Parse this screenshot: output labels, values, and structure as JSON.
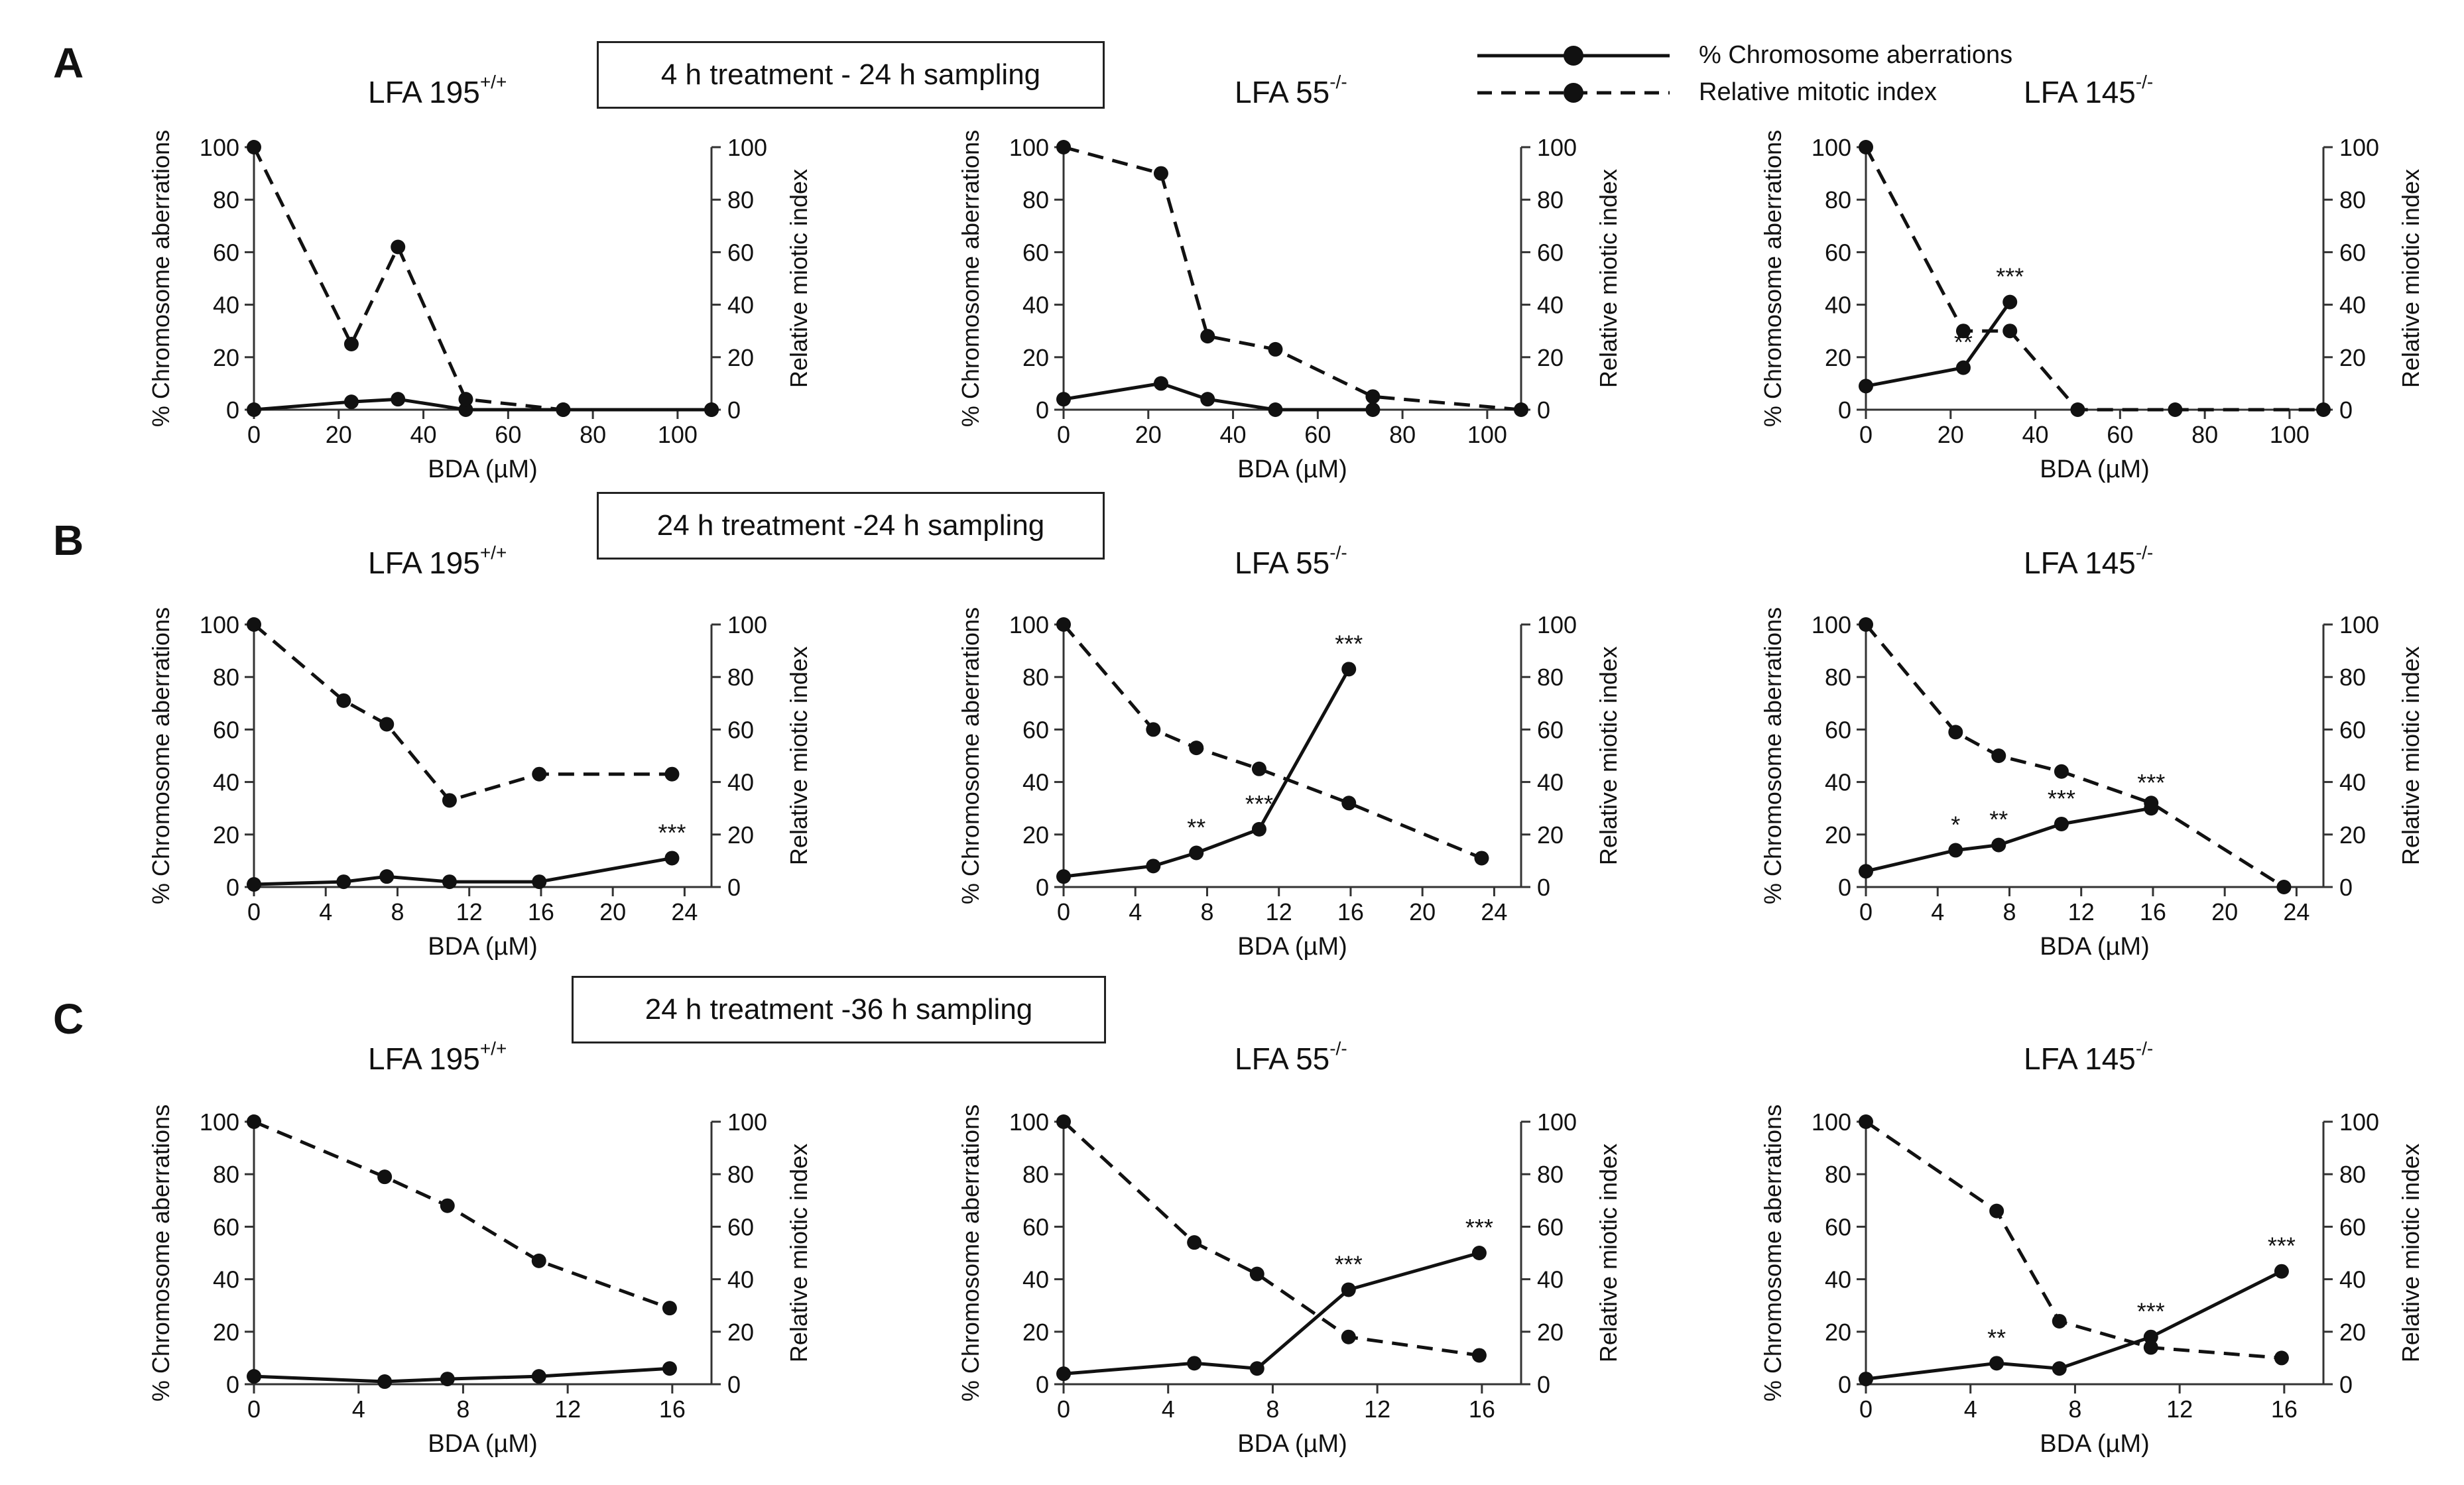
{
  "panel_letters": [
    "A",
    "B",
    "C"
  ],
  "conditions": [
    "4 h treatment - 24 h sampling",
    "24 h treatment -24 h sampling",
    "24 h treatment -36 h sampling"
  ],
  "cell_lines": [
    {
      "name": "LFA 195",
      "sup": "+/+"
    },
    {
      "name": "LFA 55",
      "sup": "-/-"
    },
    {
      "name": "LFA 145",
      "sup": "-/-"
    }
  ],
  "legend": {
    "solid_label": "% Chromosome aberrations",
    "dashed_label": "Relative mitotic index"
  },
  "colors": {
    "line": "#111111",
    "axis": "#333333"
  },
  "chart_data": [
    {
      "type": "line",
      "row": "A",
      "cell_line": "LFA 195+/+",
      "xlabel": "BDA (µM)",
      "ylabel": "% Chromosome aberrations",
      "y2label": "Relative miotic index",
      "xlim": [
        0,
        108
      ],
      "xticks": [
        0,
        20,
        40,
        60,
        80,
        100
      ],
      "ylim": [
        0,
        100
      ],
      "yticks": [
        0,
        20,
        40,
        60,
        80,
        100
      ],
      "series": [
        {
          "name": "% Chromosome aberrations",
          "style": "solid",
          "x": [
            0,
            23,
            34,
            50,
            73,
            108
          ],
          "y": [
            0,
            3,
            4,
            0,
            0,
            0
          ]
        },
        {
          "name": "Relative mitotic index",
          "style": "dashed",
          "x": [
            0,
            23,
            34,
            50,
            73,
            108
          ],
          "y": [
            100,
            25,
            62,
            4,
            0,
            0
          ]
        }
      ],
      "annotations": []
    },
    {
      "type": "line",
      "row": "A",
      "cell_line": "LFA 55-/-",
      "xlabel": "BDA (µM)",
      "ylabel": "% Chromosome aberrations",
      "y2label": "Relative miotic index",
      "xlim": [
        0,
        108
      ],
      "xticks": [
        0,
        20,
        40,
        60,
        80,
        100
      ],
      "ylim": [
        0,
        100
      ],
      "yticks": [
        0,
        20,
        40,
        60,
        80,
        100
      ],
      "series": [
        {
          "name": "% Chromosome aberrations",
          "style": "solid",
          "x": [
            0,
            23,
            34,
            50,
            73
          ],
          "y": [
            4,
            10,
            4,
            0,
            0
          ]
        },
        {
          "name": "Relative mitotic index",
          "style": "dashed",
          "x": [
            0,
            23,
            34,
            50,
            73,
            108
          ],
          "y": [
            100,
            90,
            28,
            23,
            5,
            0
          ]
        }
      ],
      "annotations": []
    },
    {
      "type": "line",
      "row": "A",
      "cell_line": "LFA 145-/-",
      "xlabel": "BDA (µM)",
      "ylabel": "% Chromosome aberrations",
      "y2label": "Relative miotic index",
      "xlim": [
        0,
        108
      ],
      "xticks": [
        0,
        20,
        40,
        60,
        80,
        100
      ],
      "ylim": [
        0,
        100
      ],
      "yticks": [
        0,
        20,
        40,
        60,
        80,
        100
      ],
      "series": [
        {
          "name": "% Chromosome aberrations",
          "style": "solid",
          "x": [
            0,
            23,
            34
          ],
          "y": [
            9,
            16,
            41
          ]
        },
        {
          "name": "Relative mitotic index",
          "style": "dashed",
          "x": [
            0,
            23,
            34,
            50,
            73,
            108
          ],
          "y": [
            100,
            30,
            30,
            0,
            0,
            0
          ]
        }
      ],
      "annotations": [
        {
          "x": 23,
          "y": 16,
          "text": "**"
        },
        {
          "x": 34,
          "y": 41,
          "text": "***"
        }
      ]
    },
    {
      "type": "line",
      "row": "B",
      "cell_line": "LFA 195+/+",
      "xlabel": "BDA (µM)",
      "ylabel": "% Chromosome aberrations",
      "y2label": "Relative miotic index",
      "xlim": [
        0,
        25.5
      ],
      "xticks": [
        0,
        4,
        8,
        12,
        16,
        20,
        24
      ],
      "ylim": [
        0,
        100
      ],
      "yticks": [
        0,
        20,
        40,
        60,
        80,
        100
      ],
      "series": [
        {
          "name": "% Chromosome aberrations",
          "style": "solid",
          "x": [
            0,
            5,
            7.4,
            10.9,
            15.9,
            23.3
          ],
          "y": [
            1,
            2,
            4,
            2,
            2,
            11
          ]
        },
        {
          "name": "Relative mitotic index",
          "style": "dashed",
          "x": [
            0,
            5,
            7.4,
            10.9,
            15.9,
            23.3
          ],
          "y": [
            100,
            71,
            62,
            33,
            43,
            43
          ]
        }
      ],
      "annotations": [
        {
          "x": 23.3,
          "y": 11,
          "text": "***"
        }
      ]
    },
    {
      "type": "line",
      "row": "B",
      "cell_line": "LFA 55-/-",
      "xlabel": "BDA (µM)",
      "ylabel": "% Chromosome aberrations",
      "y2label": "Relative miotic index",
      "xlim": [
        0,
        25.5
      ],
      "xticks": [
        0,
        4,
        8,
        12,
        16,
        20,
        24
      ],
      "ylim": [
        0,
        100
      ],
      "yticks": [
        0,
        20,
        40,
        60,
        80,
        100
      ],
      "series": [
        {
          "name": "% Chromosome aberrations",
          "style": "solid",
          "x": [
            0,
            5,
            7.4,
            10.9,
            15.9
          ],
          "y": [
            4,
            8,
            13,
            22,
            83
          ]
        },
        {
          "name": "Relative mitotic index",
          "style": "dashed",
          "x": [
            0,
            5,
            7.4,
            10.9,
            15.9,
            23.3
          ],
          "y": [
            100,
            60,
            53,
            45,
            32,
            11
          ]
        }
      ],
      "annotations": [
        {
          "x": 7.4,
          "y": 13,
          "text": "**"
        },
        {
          "x": 10.9,
          "y": 22,
          "text": "***"
        },
        {
          "x": 15.9,
          "y": 83,
          "text": "***"
        }
      ]
    },
    {
      "type": "line",
      "row": "B",
      "cell_line": "LFA 145-/-",
      "xlabel": "BDA (µM)",
      "ylabel": "% Chromosome aberrations",
      "y2label": "Relative miotic index",
      "xlim": [
        0,
        25.5
      ],
      "xticks": [
        0,
        4,
        8,
        12,
        16,
        20,
        24
      ],
      "ylim": [
        0,
        100
      ],
      "yticks": [
        0,
        20,
        40,
        60,
        80,
        100
      ],
      "series": [
        {
          "name": "% Chromosome aberrations",
          "style": "solid",
          "x": [
            0,
            5,
            7.4,
            10.9,
            15.9
          ],
          "y": [
            6,
            14,
            16,
            24,
            30
          ]
        },
        {
          "name": "Relative mitotic index",
          "style": "dashed",
          "x": [
            0,
            5,
            7.4,
            10.9,
            15.9,
            23.3
          ],
          "y": [
            100,
            59,
            50,
            44,
            32,
            0
          ]
        }
      ],
      "annotations": [
        {
          "x": 5,
          "y": 14,
          "text": "*"
        },
        {
          "x": 7.4,
          "y": 16,
          "text": "**"
        },
        {
          "x": 10.9,
          "y": 24,
          "text": "***"
        },
        {
          "x": 15.9,
          "y": 30,
          "text": "***"
        }
      ]
    },
    {
      "type": "line",
      "row": "C",
      "cell_line": "LFA 195+/+",
      "xlabel": "BDA (µM)",
      "ylabel": "% Chromosome aberrations",
      "y2label": "Relative miotic index",
      "xlim": [
        0,
        17.5
      ],
      "xticks": [
        0,
        4,
        8,
        12,
        16
      ],
      "ylim": [
        0,
        100
      ],
      "yticks": [
        0,
        20,
        40,
        60,
        80,
        100
      ],
      "series": [
        {
          "name": "% Chromosome aberrations",
          "style": "solid",
          "x": [
            0,
            5,
            7.4,
            10.9,
            15.9
          ],
          "y": [
            3,
            1,
            2,
            3,
            6
          ]
        },
        {
          "name": "Relative mitotic index",
          "style": "dashed",
          "x": [
            0,
            5,
            7.4,
            10.9,
            15.9
          ],
          "y": [
            100,
            79,
            68,
            47,
            29
          ]
        }
      ],
      "annotations": []
    },
    {
      "type": "line",
      "row": "C",
      "cell_line": "LFA 55-/-",
      "xlabel": "BDA (µM)",
      "ylabel": "% Chromosome aberrations",
      "y2label": "Relative miotic index",
      "xlim": [
        0,
        17.5
      ],
      "xticks": [
        0,
        4,
        8,
        12,
        16
      ],
      "ylim": [
        0,
        100
      ],
      "yticks": [
        0,
        20,
        40,
        60,
        80,
        100
      ],
      "series": [
        {
          "name": "% Chromosome aberrations",
          "style": "solid",
          "x": [
            0,
            5,
            7.4,
            10.9,
            15.9
          ],
          "y": [
            4,
            8,
            6,
            36,
            50
          ]
        },
        {
          "name": "Relative mitotic index",
          "style": "dashed",
          "x": [
            0,
            5,
            7.4,
            10.9,
            15.9
          ],
          "y": [
            100,
            54,
            42,
            18,
            11
          ]
        }
      ],
      "annotations": [
        {
          "x": 10.9,
          "y": 36,
          "text": "***"
        },
        {
          "x": 15.9,
          "y": 50,
          "text": "***"
        }
      ]
    },
    {
      "type": "line",
      "row": "C",
      "cell_line": "LFA 145-/-",
      "xlabel": "BDA (µM)",
      "ylabel": "% Chromosome aberrations",
      "y2label": "Relative miotic index",
      "xlim": [
        0,
        17.5
      ],
      "xticks": [
        0,
        4,
        8,
        12,
        16
      ],
      "ylim": [
        0,
        100
      ],
      "yticks": [
        0,
        20,
        40,
        60,
        80,
        100
      ],
      "series": [
        {
          "name": "% Chromosome aberrations",
          "style": "solid",
          "x": [
            0,
            5,
            7.4,
            10.9,
            15.9
          ],
          "y": [
            2,
            8,
            6,
            18,
            43
          ]
        },
        {
          "name": "Relative mitotic index",
          "style": "dashed",
          "x": [
            0,
            5,
            7.4,
            10.9,
            15.9
          ],
          "y": [
            100,
            66,
            24,
            14,
            10
          ]
        }
      ],
      "annotations": [
        {
          "x": 5,
          "y": 8,
          "text": "**"
        },
        {
          "x": 10.9,
          "y": 18,
          "text": "***"
        },
        {
          "x": 15.9,
          "y": 43,
          "text": "***"
        }
      ]
    }
  ]
}
